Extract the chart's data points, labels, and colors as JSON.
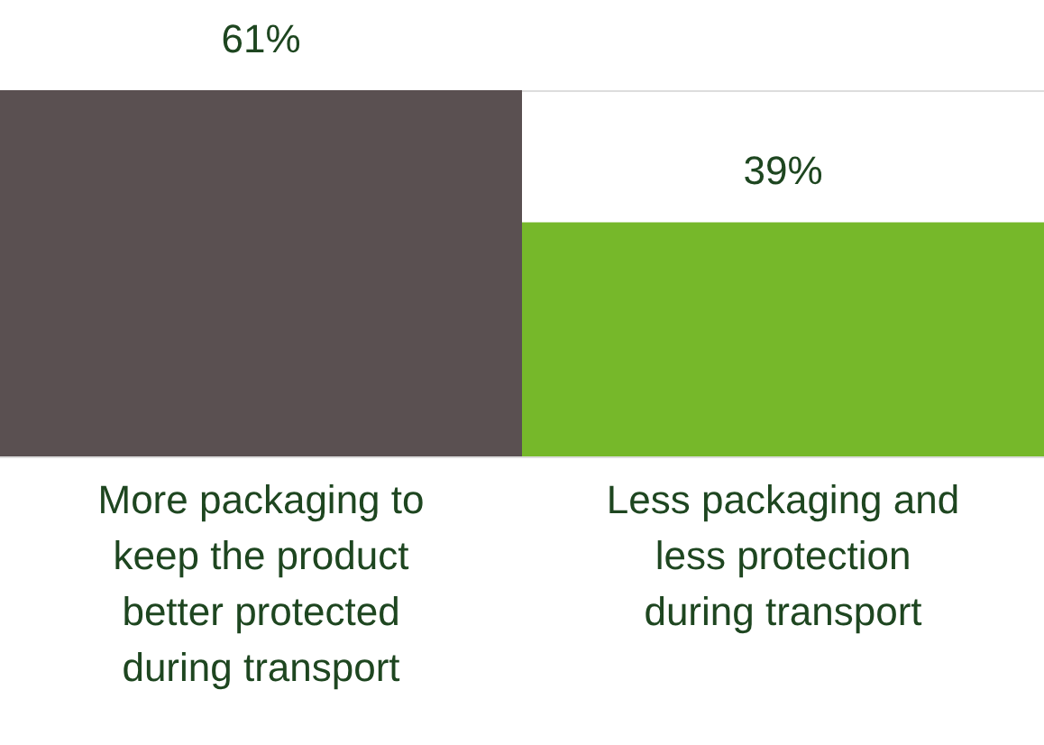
{
  "chart_data": {
    "type": "bar",
    "categories": [
      "More packaging to keep the product better protected during transport",
      "Less packaging and less protection during transport"
    ],
    "values": [
      61,
      39
    ],
    "colors": [
      "#5a5051",
      "#76b82a"
    ],
    "data_labels": true,
    "value_labels": [
      "61%",
      "39%"
    ]
  }
}
